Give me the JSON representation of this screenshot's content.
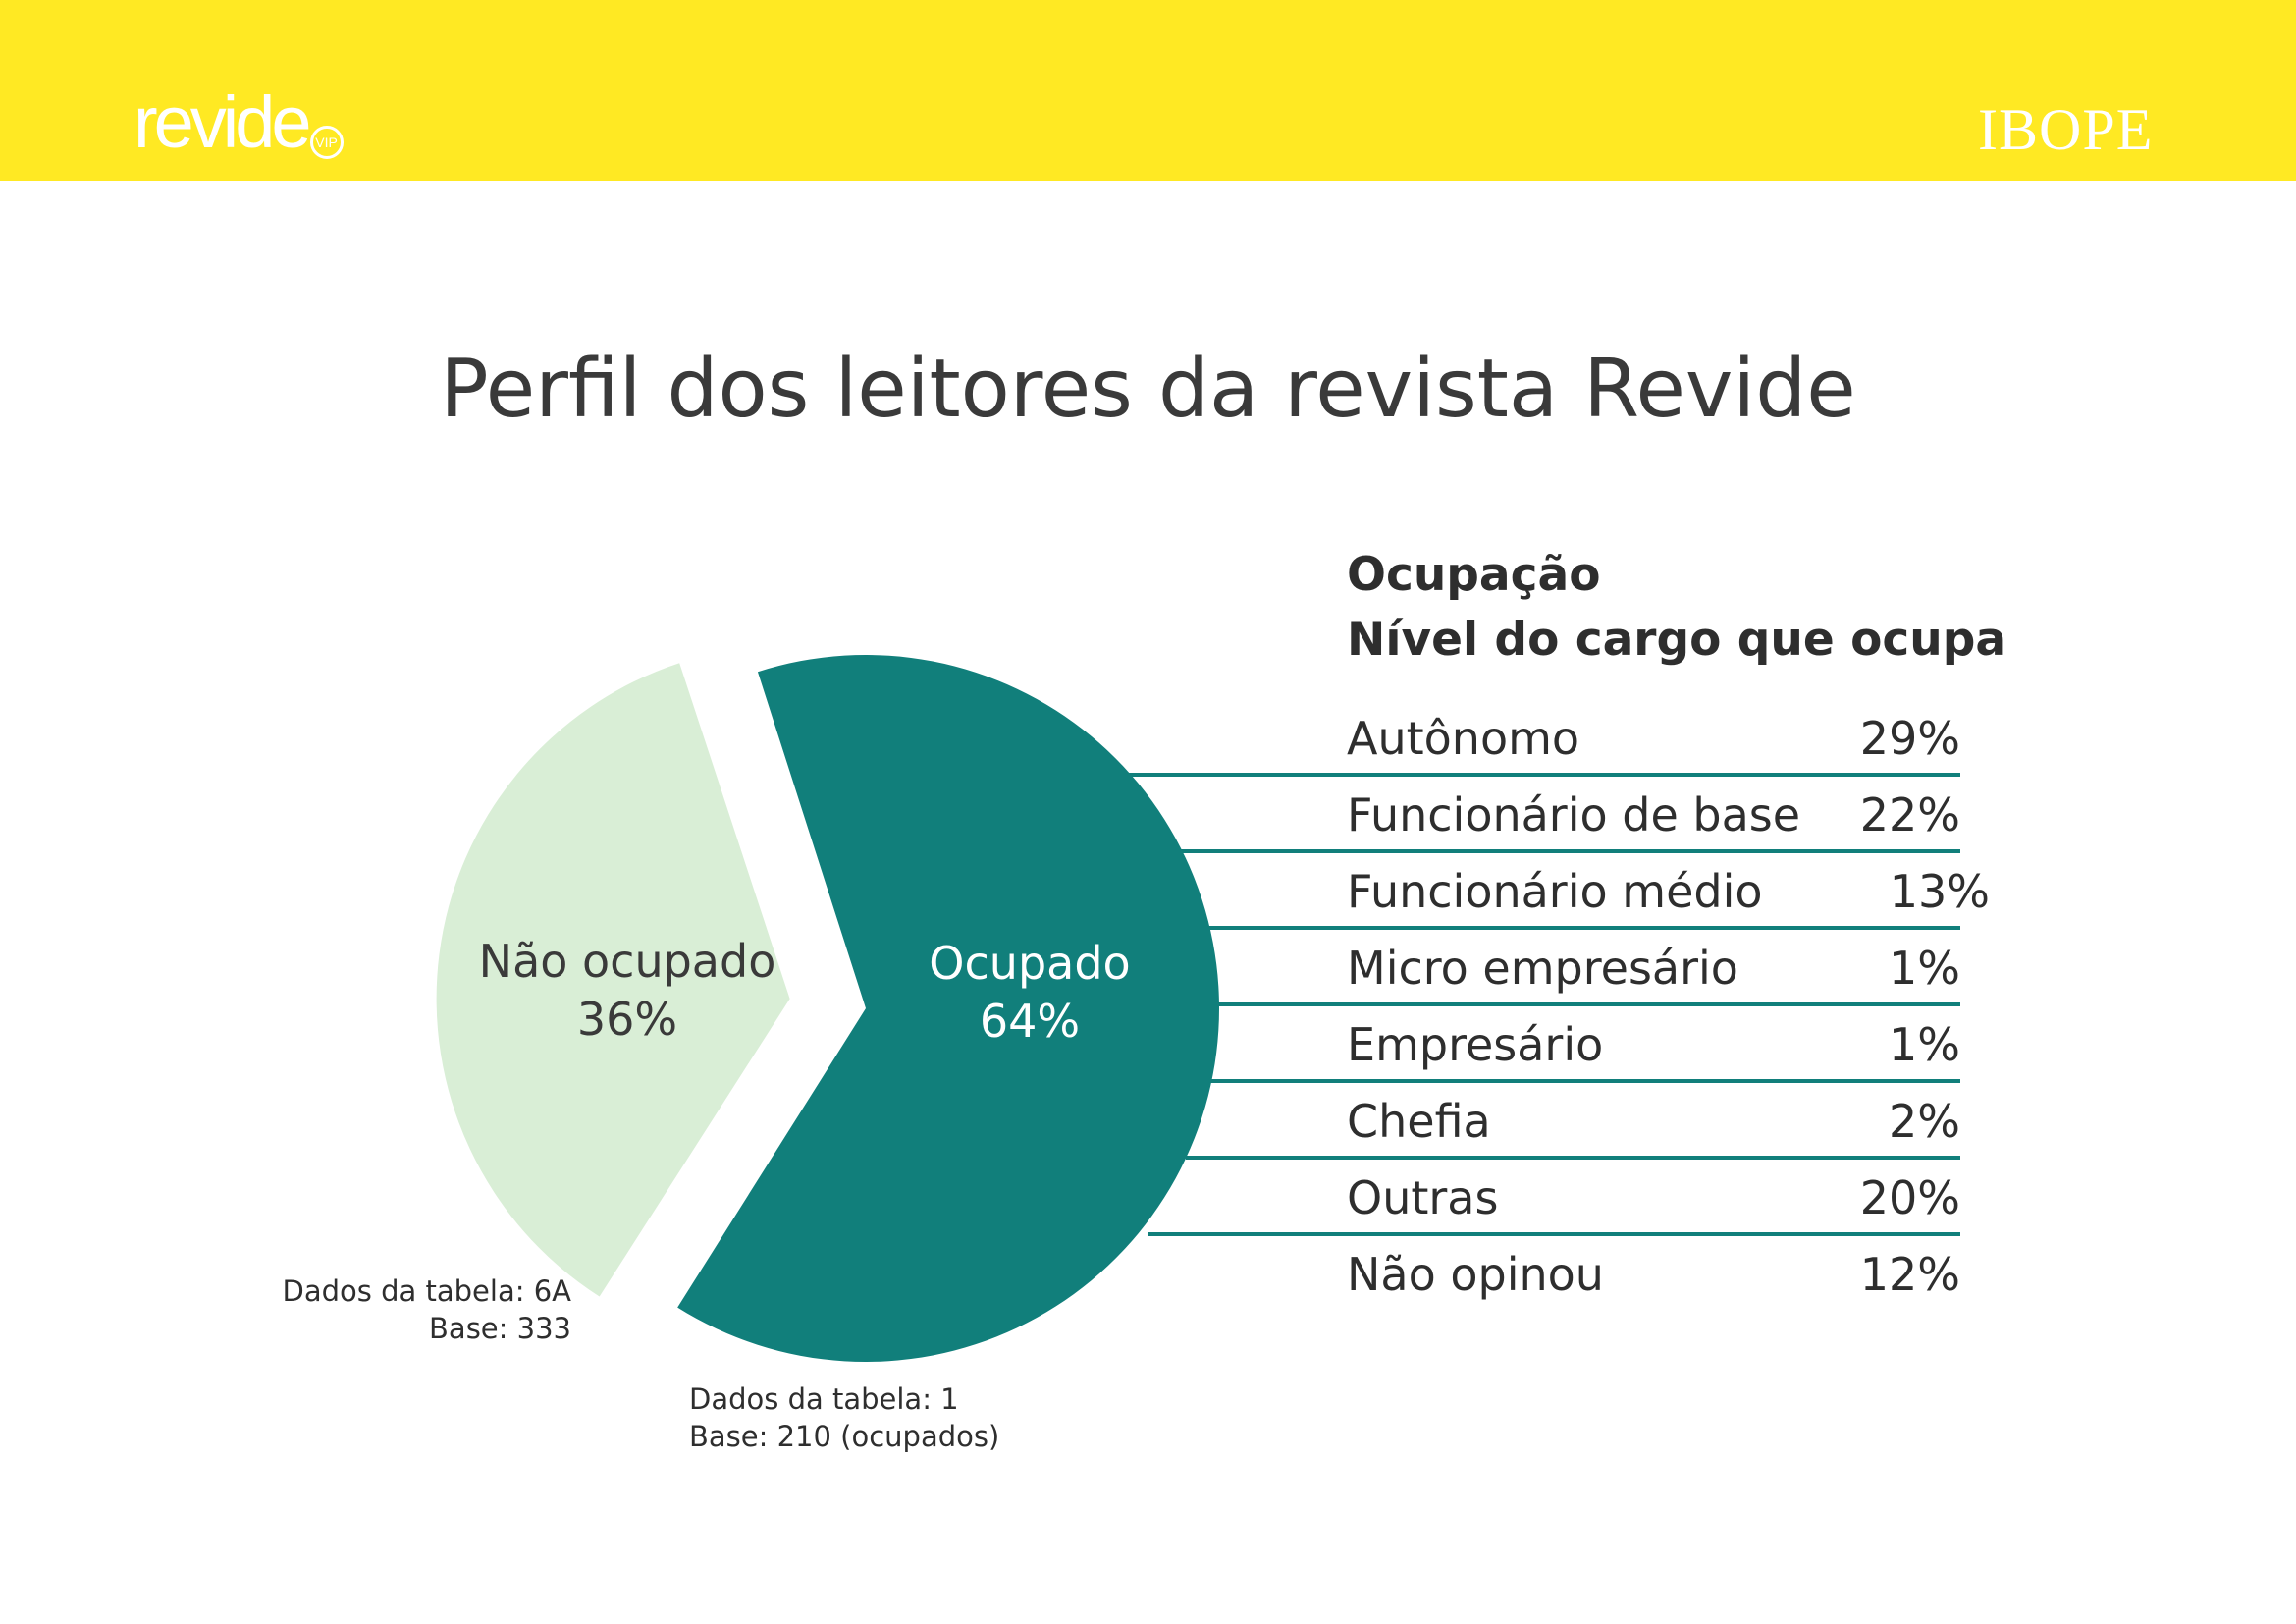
{
  "header": {
    "logo_left": "revide",
    "logo_left_badge": "VIP",
    "logo_right": "IBOPE",
    "bar_color": "#ffe923"
  },
  "chart_data": {
    "type": "pie",
    "title": "Perfil dos leitores da revista Revide",
    "slices": [
      {
        "label": "Não ocupado",
        "value": 36,
        "value_label": "36%",
        "color": "#d9eed6",
        "exploded": true
      },
      {
        "label": "Ocupado",
        "value": 64,
        "value_label": "64%",
        "color": "#117f7b",
        "exploded": false
      }
    ],
    "source": {
      "line1": "Dados da tabela: 6A",
      "line2": "Base: 333"
    }
  },
  "breakdown": {
    "title_line1": "Ocupação",
    "title_line2": "Nível do cargo que ocupa",
    "line_color": "#117f7b",
    "rows": [
      {
        "label": "Autônomo",
        "value": "29%"
      },
      {
        "label": "Funcionário de base",
        "value": "22%"
      },
      {
        "label": "Funcionário médio",
        "value": "13%"
      },
      {
        "label": "Micro empresário",
        "value": "1%"
      },
      {
        "label": "Empresário",
        "value": "1%"
      },
      {
        "label": "Chefia",
        "value": "2%"
      },
      {
        "label": "Outras",
        "value": "20%"
      },
      {
        "label": "Não opinou",
        "value": "12%"
      }
    ],
    "source": {
      "line1": "Dados da tabela: 1",
      "line2": "Base: 210 (ocupados)"
    }
  }
}
